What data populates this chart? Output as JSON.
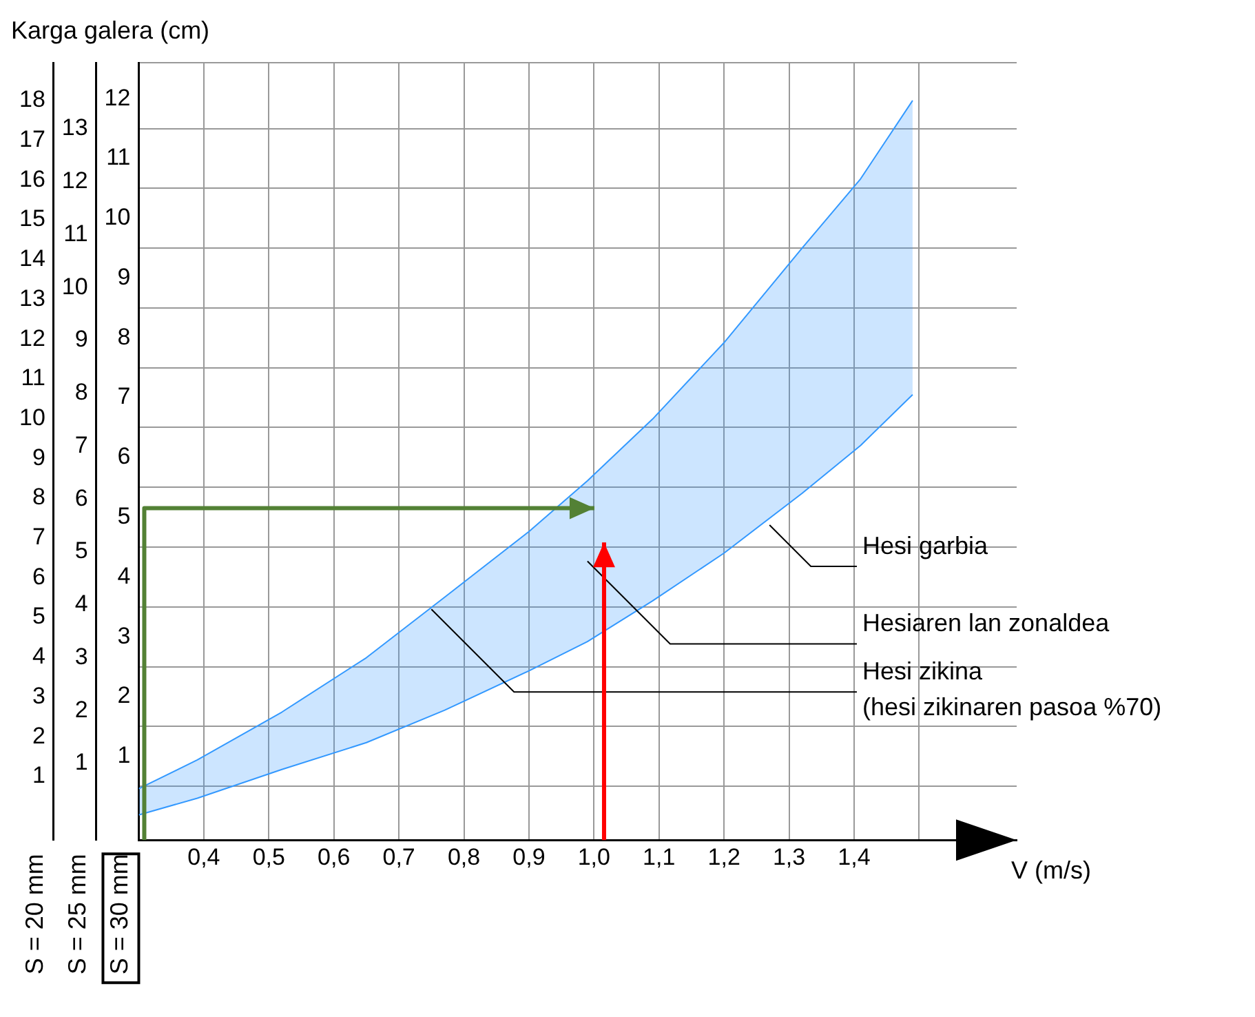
{
  "chart_data": {
    "type": "line",
    "title": "Karga galera (cm)",
    "xlabel": "V (m/s)",
    "ylabel": "S = 30 mm",
    "y2label": "S = 25 mm",
    "y3label": "S = 20 mm",
    "x": [
      0.3,
      0.39,
      0.52,
      0.65,
      0.77,
      0.9,
      0.99,
      1.09,
      1.2,
      1.32,
      1.41,
      1.49
    ],
    "series": [
      {
        "type": "area",
        "color": "#3399ff",
        "values": [
          0.46,
          0.94,
          1.74,
          2.65,
          3.66,
          4.76,
          5.61,
          6.64,
          7.92,
          9.5,
          10.66,
          11.97
        ]
      },
      {
        "color": "#3399ff",
        "values": [
          0.02,
          0.3,
          0.78,
          1.23,
          1.77,
          2.43,
          2.92,
          3.6,
          4.4,
          5.4,
          6.2,
          7.05
        ]
      }
    ],
    "xlim": [
      0.3,
      1.65
    ],
    "xticks": [
      {
        "value": 0.4,
        "label": "0,4"
      },
      {
        "value": 0.5,
        "label": "0,5"
      },
      {
        "value": 0.6,
        "label": "0,6"
      },
      {
        "value": 0.7,
        "label": "0,7"
      },
      {
        "value": 0.8,
        "label": "0,8"
      },
      {
        "value": 0.9,
        "label": "0,9"
      },
      {
        "value": 1.0,
        "label": "1,0"
      },
      {
        "value": 1.1,
        "label": "1,1"
      },
      {
        "value": 1.2,
        "label": "1,2"
      },
      {
        "value": 1.3,
        "label": "1,3"
      },
      {
        "value": 1.4,
        "label": "1,4"
      },
      {
        "value": 1.5,
        "label": null
      }
    ],
    "ylim": [
      -0.4,
      12.6
    ],
    "yticks": [
      1,
      2,
      3,
      4,
      5,
      6,
      7,
      8,
      9,
      10,
      11,
      12,
      {
        "value": 0.5,
        "label": null
      },
      {
        "value": 1.5,
        "label": null
      },
      {
        "value": 2.5,
        "label": null
      },
      {
        "value": 3.5,
        "label": null
      },
      {
        "value": 4.5,
        "label": null
      },
      {
        "value": 5.5,
        "label": null
      },
      {
        "value": 6.5,
        "label": null
      },
      {
        "value": 7.5,
        "label": null
      },
      {
        "value": 8.5,
        "label": null
      },
      {
        "value": 9.5,
        "label": null
      },
      {
        "value": 10.5,
        "label": null
      },
      {
        "value": 11.5,
        "label": null
      },
      {
        "value": 12.6,
        "label": null
      }
    ],
    "y2lim": [
      -0.45,
      14.25
    ],
    "y2ticks": [
      1,
      2,
      3,
      4,
      5,
      6,
      7,
      8,
      9,
      10,
      11,
      12,
      13
    ],
    "y3lim": [
      -0.6,
      18.95
    ],
    "y3ticks": [
      1,
      2,
      3,
      4,
      5,
      6,
      7,
      8,
      9,
      10,
      11,
      12,
      13,
      14,
      15,
      16,
      17,
      18
    ],
    "annotations": [
      {
        "text": "Hesi garbia",
        "x": 1.27,
        "y": 4.87
      },
      "Hesiaren lan zonaldea",
      {
        "text": "Hesi zikina\n(hesi zikinaren pasoa %70)",
        "x": 0.75,
        "y": 3.46
      }
    ],
    "grid": true,
    "legend": false
  }
}
